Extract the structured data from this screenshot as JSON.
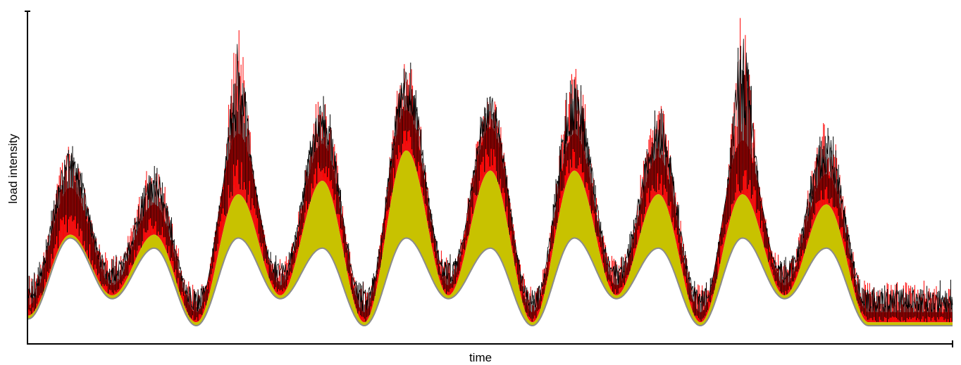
{
  "chart_data": {
    "type": "area",
    "title": "",
    "xlabel": "time",
    "ylabel": "load intensity",
    "x_tick_labels": [],
    "y_tick_labels": [],
    "xlim": [
      0,
      11
    ],
    "ylim": [
      0,
      1
    ],
    "grid": false,
    "legend": "none",
    "colors": {
      "base_line": "#8c8c8c",
      "trend": "#c8c200",
      "mean_band": "#ee1111",
      "noise_red": "#ff0000",
      "noise_black": "#000000",
      "axis": "#000000"
    },
    "cycles": [
      {
        "index": 1,
        "base_min": 0.05,
        "base_peak": 0.31,
        "trend_peak": 0.31,
        "mean_peak": 0.46,
        "max_peak": 0.59
      },
      {
        "index": 2,
        "base_min": 0.13,
        "base_peak": 0.28,
        "trend_peak": 0.31,
        "mean_peak": 0.41,
        "max_peak": 0.53
      },
      {
        "index": 3,
        "base_min": 0.05,
        "base_peak": 0.31,
        "trend_peak": 0.43,
        "mean_peak": 0.62,
        "max_peak": 0.94
      },
      {
        "index": 4,
        "base_min": 0.13,
        "base_peak": 0.28,
        "trend_peak": 0.47,
        "mean_peak": 0.59,
        "max_peak": 0.74
      },
      {
        "index": 5,
        "base_min": 0.05,
        "base_peak": 0.31,
        "trend_peak": 0.56,
        "mean_peak": 0.69,
        "max_peak": 0.84
      },
      {
        "index": 6,
        "base_min": 0.13,
        "base_peak": 0.28,
        "trend_peak": 0.5,
        "mean_peak": 0.64,
        "max_peak": 0.75
      },
      {
        "index": 7,
        "base_min": 0.05,
        "base_peak": 0.31,
        "trend_peak": 0.5,
        "mean_peak": 0.62,
        "max_peak": 0.81
      },
      {
        "index": 8,
        "base_min": 0.13,
        "base_peak": 0.28,
        "trend_peak": 0.43,
        "mean_peak": 0.55,
        "max_peak": 0.71
      },
      {
        "index": 9,
        "base_min": 0.05,
        "base_peak": 0.31,
        "trend_peak": 0.43,
        "mean_peak": 0.6,
        "max_peak": 0.98
      },
      {
        "index": 10,
        "base_min": 0.13,
        "base_peak": 0.28,
        "trend_peak": 0.4,
        "mean_peak": 0.5,
        "max_peak": 0.66
      }
    ]
  }
}
